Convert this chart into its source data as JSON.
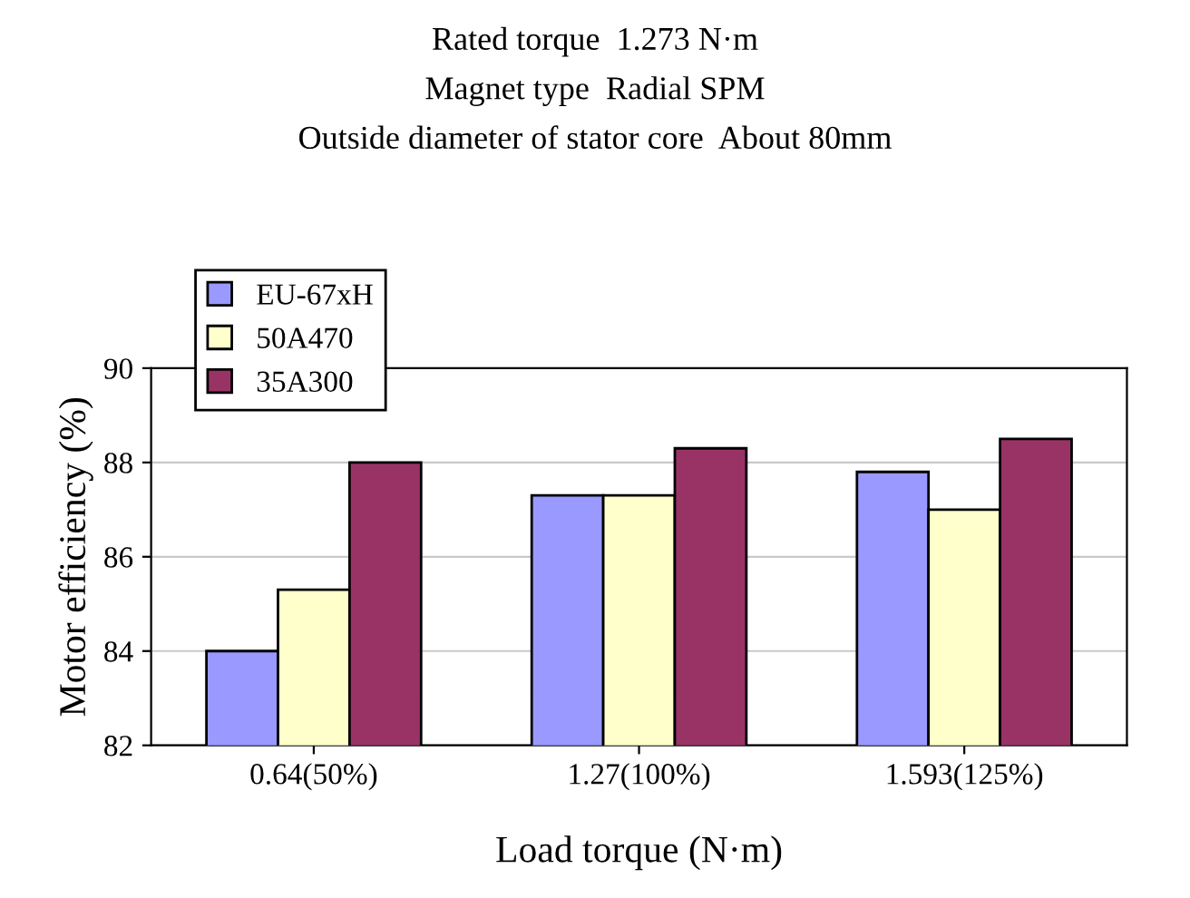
{
  "chart_data": {
    "type": "bar",
    "ylabel": "Motor efficiency (%)",
    "xlabel": "Load torque (N·m)",
    "annotations": [
      "Rated torque  1.273 N·m",
      "Magnet type  Radial SPM",
      "Outside diameter of stator core  About 80mm"
    ],
    "categories": [
      "0.64(50%)",
      "1.27(100%)",
      "1.593(125%)"
    ],
    "series": [
      {
        "name": "EU-67xH",
        "color": "#9999ff",
        "values": [
          84.0,
          87.3,
          87.8
        ]
      },
      {
        "name": "50A470",
        "color": "#ffffcc",
        "values": [
          85.3,
          87.3,
          87.0
        ]
      },
      {
        "name": "35A300",
        "color": "#993366",
        "values": [
          88.0,
          88.3,
          88.5
        ]
      }
    ],
    "ylim": [
      82,
      90
    ],
    "yticks": [
      82,
      84,
      86,
      88,
      90
    ],
    "grid": "y",
    "legend": "top left"
  }
}
